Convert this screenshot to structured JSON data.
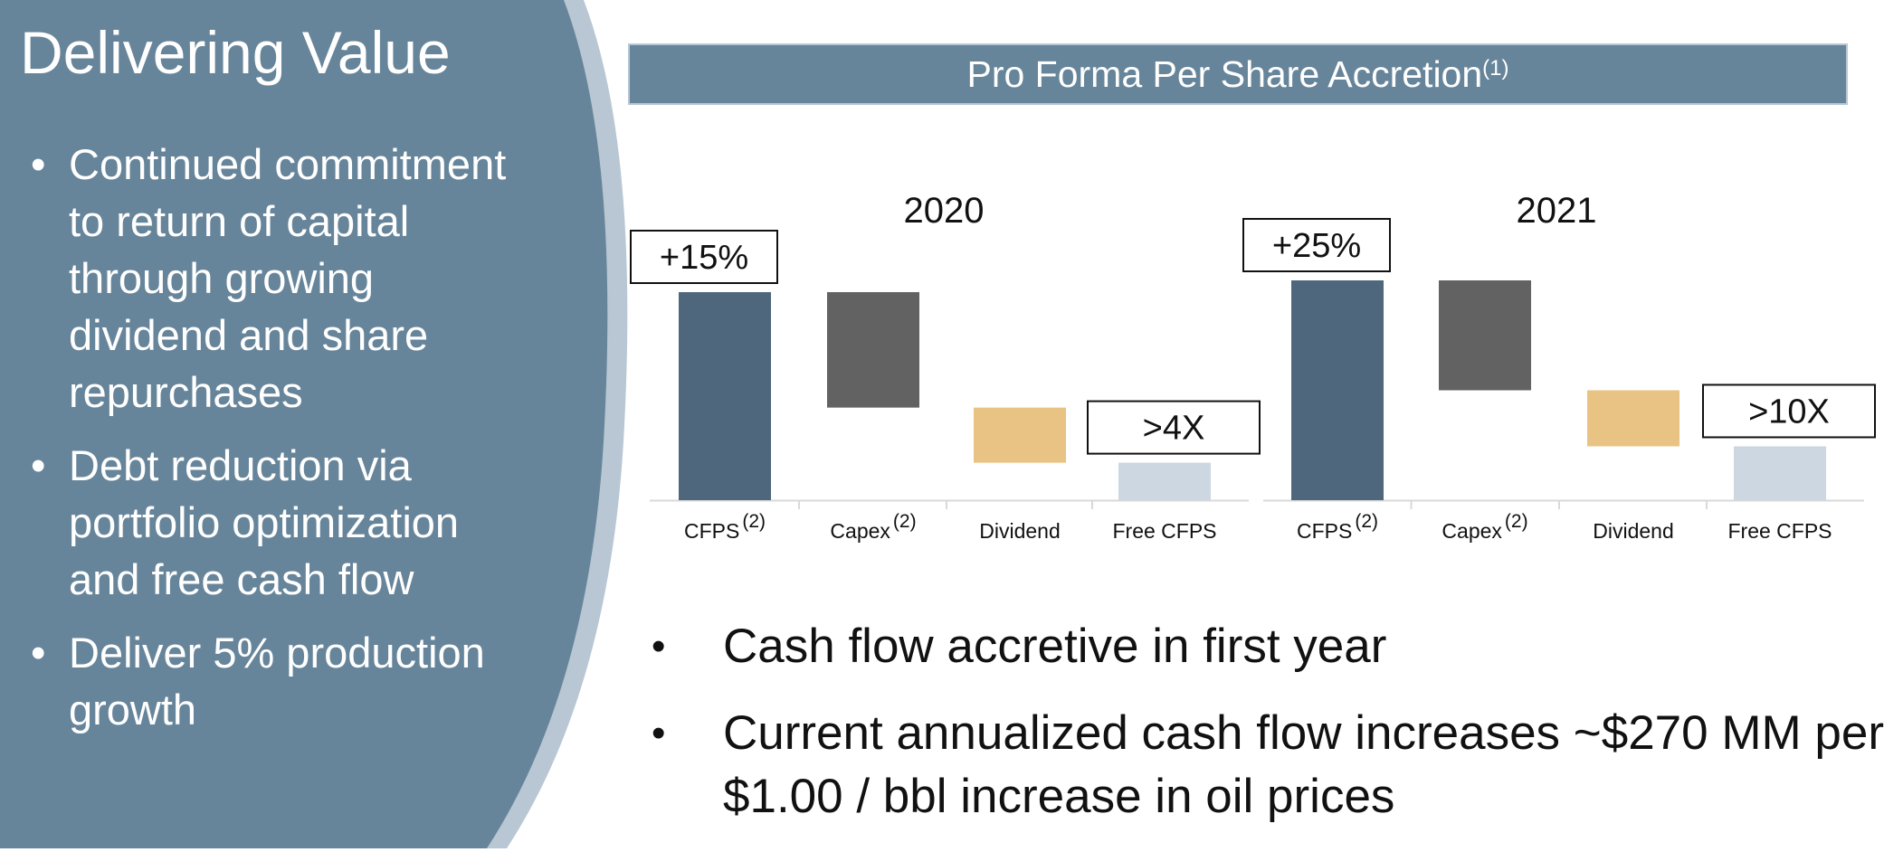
{
  "left_panel": {
    "title": "Delivering Value",
    "bullets": [
      "Continued commitment to return of capital through growing dividend and share repurchases",
      "Debt reduction via portfolio optimization and free cash flow",
      "Deliver 5% production growth"
    ]
  },
  "chart_header": {
    "title": "Pro Forma Per Share Accretion",
    "footnote": "(1)"
  },
  "chart_data": [
    {
      "type": "bar",
      "subtype": "waterfall",
      "title": "2020",
      "categories": [
        "CFPS",
        "Capex",
        "Dividend",
        "Free CFPS"
      ],
      "category_footnotes": [
        "(2)",
        "(2)",
        "",
        ""
      ],
      "bars": [
        {
          "start": 0,
          "end": 100
        },
        {
          "start": 44.5,
          "end": 100
        },
        {
          "start": 18,
          "end": 44.5
        },
        {
          "start": 0,
          "end": 18
        }
      ],
      "ylim": [
        0,
        100
      ],
      "callouts": [
        {
          "category": "CFPS",
          "text": "+15%"
        },
        {
          "category": "Free CFPS",
          "text": ">4X"
        }
      ],
      "colors": [
        "#4e677c",
        "#626262",
        "#e8c383",
        "#ccd7e1"
      ]
    },
    {
      "type": "bar",
      "subtype": "waterfall",
      "title": "2021",
      "categories": [
        "CFPS",
        "Capex",
        "Dividend",
        "Free CFPS"
      ],
      "category_footnotes": [
        "(2)",
        "(2)",
        "",
        ""
      ],
      "bars": [
        {
          "start": 0,
          "end": 100
        },
        {
          "start": 50,
          "end": 100
        },
        {
          "start": 24.5,
          "end": 50
        },
        {
          "start": 0,
          "end": 24.5
        }
      ],
      "ylim": [
        0,
        100
      ],
      "callouts": [
        {
          "category": "CFPS",
          "text": "+25%"
        },
        {
          "category": "Free CFPS",
          "text": ">10X"
        }
      ],
      "colors": [
        "#4e677c",
        "#626262",
        "#e8c383",
        "#ccd7e1"
      ]
    }
  ],
  "bottom_bullets": [
    "Cash flow accretive in first year",
    "Current annualized cash flow increases ~$270 MM per $1.00 / bbl increase in oil prices"
  ],
  "colors": {
    "panel": "#67859a",
    "panel_edge": "#b8c7d3",
    "bullet_glyph": "•"
  }
}
